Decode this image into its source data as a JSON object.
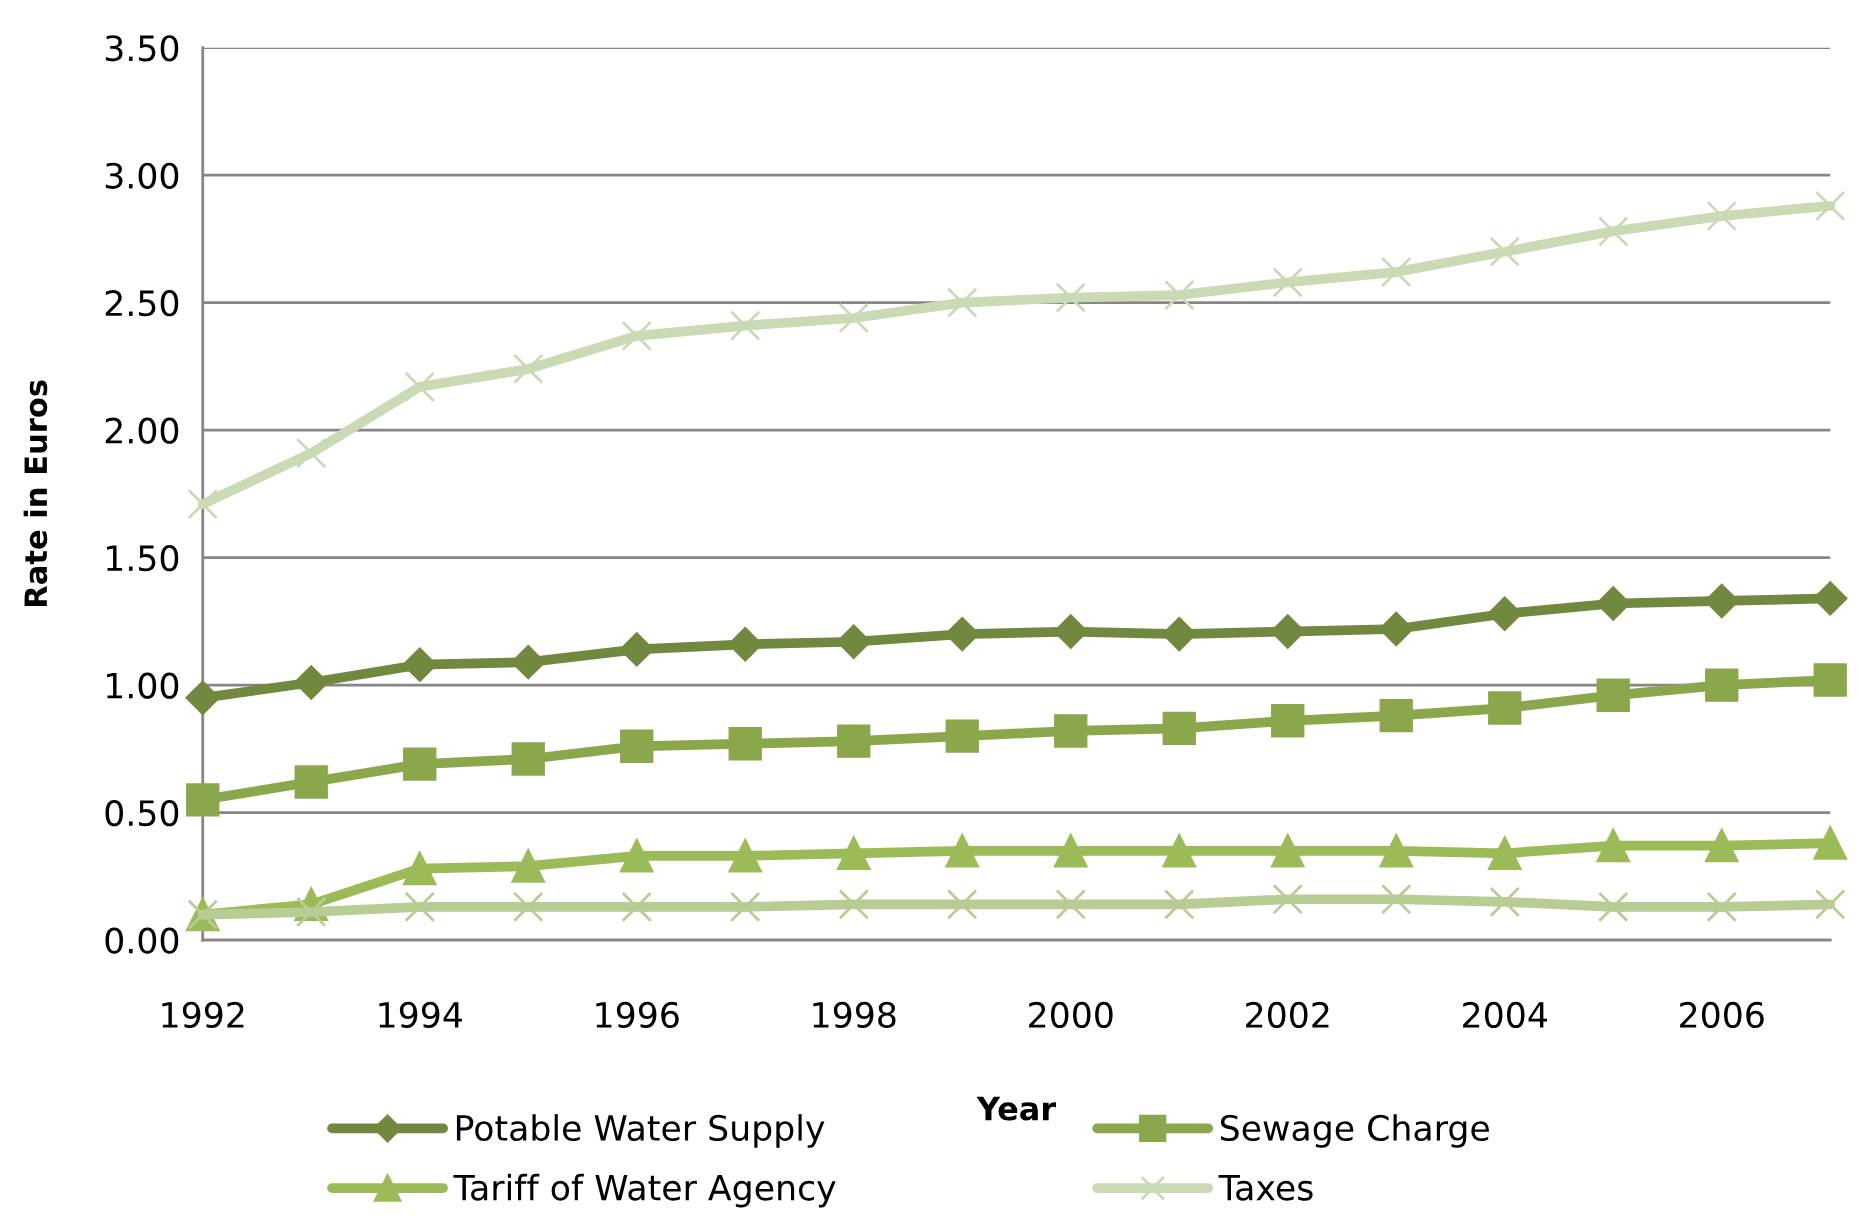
{
  "chart_data": {
    "type": "line",
    "xlabel": "Year",
    "ylabel": "Rate in Euros",
    "x": [
      1992,
      1993,
      1994,
      1995,
      1996,
      1997,
      1998,
      1999,
      2000,
      2001,
      2002,
      2003,
      2004,
      2005,
      2006,
      2007
    ],
    "xlim": [
      1992,
      2007
    ],
    "xticks": [
      1992,
      1994,
      1996,
      1998,
      2000,
      2002,
      2004,
      2006
    ],
    "ylim": [
      0,
      3.5
    ],
    "yticks": [
      {
        "value": 0,
        "label": "0.00"
      },
      {
        "value": 0.5,
        "label": "0.50"
      },
      {
        "value": 1,
        "label": "1.00"
      },
      {
        "value": 1.5,
        "label": "1.50"
      },
      {
        "value": 2,
        "label": "2.00"
      },
      {
        "value": 2.5,
        "label": "2.50"
      },
      {
        "value": 3,
        "label": "3.00"
      },
      {
        "value": 3.5,
        "label": "3.50"
      }
    ],
    "grid": "y",
    "legend": "bottom",
    "series": [
      {
        "name": "Potable Water Supply",
        "color": "#71893f",
        "marker": "diamond",
        "values": [
          0.95,
          1.01,
          1.08,
          1.09,
          1.14,
          1.16,
          1.17,
          1.2,
          1.21,
          1.2,
          1.21,
          1.22,
          1.28,
          1.32,
          1.33,
          1.34
        ]
      },
      {
        "name": "Sewage Charge",
        "color": "#8aa84b",
        "marker": "square",
        "values": [
          0.55,
          0.62,
          0.69,
          0.71,
          0.76,
          0.77,
          0.78,
          0.8,
          0.82,
          0.83,
          0.86,
          0.88,
          0.91,
          0.96,
          1.0,
          1.02
        ]
      },
      {
        "name": "Tariff of Water Agency",
        "color": "#9bbb59",
        "marker": "triangle",
        "values": [
          0.1,
          0.14,
          0.28,
          0.29,
          0.33,
          0.33,
          0.34,
          0.35,
          0.35,
          0.35,
          0.35,
          0.35,
          0.34,
          0.37,
          0.37,
          0.38
        ]
      },
      {
        "name": "Taxes",
        "color": "#c9dab4",
        "marker": "cross",
        "values": [
          1.71,
          1.91,
          2.17,
          2.24,
          2.37,
          2.41,
          2.44,
          2.5,
          2.52,
          2.53,
          2.58,
          2.62,
          2.7,
          2.78,
          2.84,
          2.88
        ]
      },
      {
        "color": "#b7cd94",
        "marker": "cross",
        "values": [
          0.1,
          0.11,
          0.13,
          0.13,
          0.13,
          0.13,
          0.14,
          0.14,
          0.14,
          0.14,
          0.16,
          0.16,
          0.15,
          0.13,
          0.13,
          0.14
        ]
      }
    ]
  }
}
